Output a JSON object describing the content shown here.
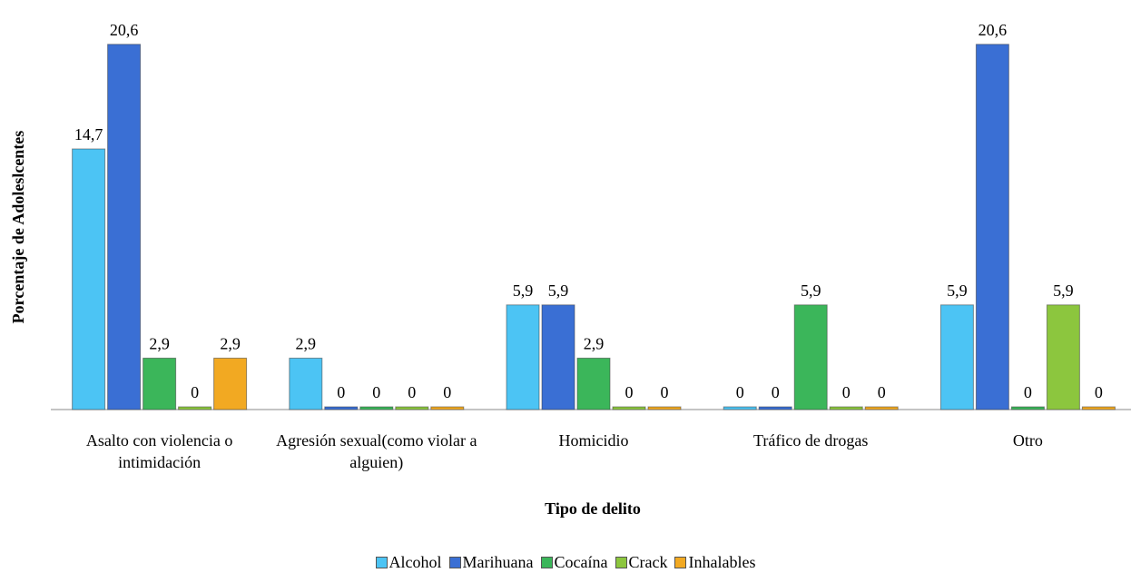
{
  "chart_data": {
    "type": "bar",
    "x_label": "Tipo de delito",
    "y_label": "Porcentaje de Adoleslcentes",
    "categories": [
      "Asalto con violencia o intimidación",
      "Agresión  sexual(como violar a alguien)",
      "Homicidio",
      "Tráfico de drogas",
      "Otro"
    ],
    "ylim": [
      0,
      21
    ],
    "legend": "bottom",
    "series": [
      {
        "name": "Alcohol",
        "color": "#4cc4f4",
        "values": [
          14.7,
          2.9,
          5.9,
          0,
          5.9
        ],
        "value_labels": [
          "14,7",
          "2,9",
          "5,9",
          "0",
          "5,9"
        ]
      },
      {
        "name": "Marihuana",
        "color": "#3a6fd4",
        "values": [
          20.6,
          0,
          5.9,
          0,
          20.6
        ],
        "value_labels": [
          "20,6",
          "0",
          "5,9",
          "0",
          "20,6"
        ]
      },
      {
        "name": "Cocaína",
        "color": "#3bb65a",
        "values": [
          2.9,
          0,
          2.9,
          5.9,
          0
        ],
        "value_labels": [
          "2,9",
          "0",
          "2,9",
          "5,9",
          "0"
        ]
      },
      {
        "name": "Crack",
        "color": "#8cc63e",
        "values": [
          0,
          0,
          0,
          0,
          5.9
        ],
        "value_labels": [
          "0",
          "0",
          "0",
          "0",
          "5,9"
        ]
      },
      {
        "name": "Inhalables",
        "color": "#f2a922",
        "values": [
          2.9,
          0,
          0,
          0,
          0
        ],
        "value_labels": [
          "2,9",
          "0",
          "0",
          "0",
          "0"
        ]
      }
    ]
  }
}
